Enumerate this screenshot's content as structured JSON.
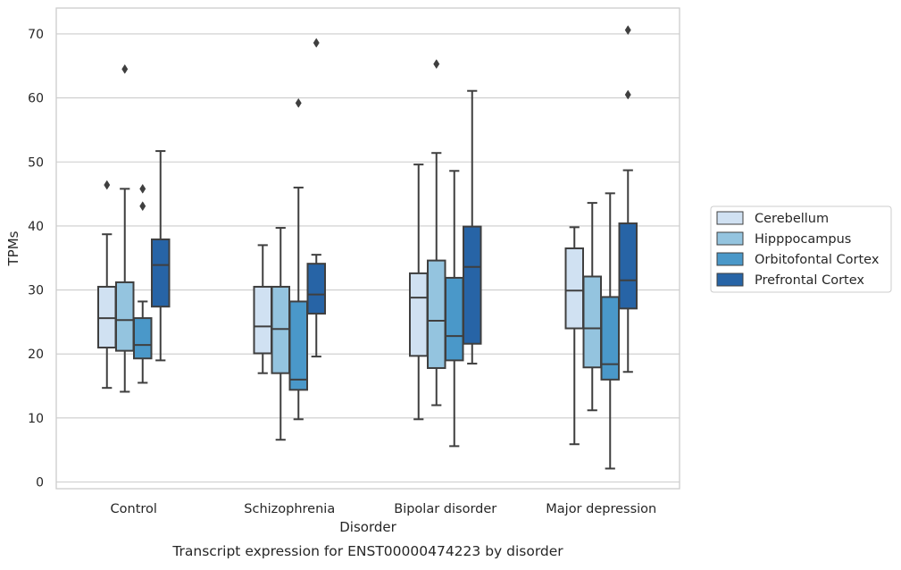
{
  "chart_data": {
    "type": "box",
    "title": "Transcript expression for ENST00000474223 by disorder",
    "xlabel": "Disorder",
    "ylabel": "TPMs",
    "ylim": [
      -1,
      74
    ],
    "yticks": [
      0,
      10,
      20,
      30,
      40,
      50,
      60,
      70
    ],
    "grid": true,
    "legend_position": "right",
    "categories": [
      "Control",
      "Schizophrenia",
      "Bipolar disorder",
      "Major depression"
    ],
    "series": [
      {
        "name": "Cerebellum",
        "color": "#d0e1f2",
        "boxes": [
          {
            "whisker_low": 14.7,
            "q1": 21.0,
            "median": 25.6,
            "q3": 30.5,
            "whisker_high": 38.7,
            "outliers": [
              46.4
            ]
          },
          {
            "whisker_low": 17.0,
            "q1": 20.1,
            "median": 24.3,
            "q3": 30.5,
            "whisker_high": 37.0,
            "outliers": []
          },
          {
            "whisker_low": 9.8,
            "q1": 19.7,
            "median": 28.8,
            "q3": 32.6,
            "whisker_high": 49.6,
            "outliers": []
          },
          {
            "whisker_low": 5.9,
            "q1": 24.0,
            "median": 29.9,
            "q3": 36.5,
            "whisker_high": 39.8,
            "outliers": []
          }
        ]
      },
      {
        "name": "Hipppocampus",
        "color": "#94c4df",
        "boxes": [
          {
            "whisker_low": 14.1,
            "q1": 20.5,
            "median": 25.3,
            "q3": 31.2,
            "whisker_high": 45.8,
            "outliers": [
              64.5
            ]
          },
          {
            "whisker_low": 6.6,
            "q1": 17.0,
            "median": 23.9,
            "q3": 30.5,
            "whisker_high": 39.7,
            "outliers": []
          },
          {
            "whisker_low": 12.0,
            "q1": 17.8,
            "median": 25.2,
            "q3": 34.6,
            "whisker_high": 51.4,
            "outliers": [
              65.3
            ]
          },
          {
            "whisker_low": 11.2,
            "q1": 17.9,
            "median": 24.0,
            "q3": 32.1,
            "whisker_high": 43.6,
            "outliers": []
          }
        ]
      },
      {
        "name": "Orbitofontal Cortex",
        "color": "#4a98c9",
        "boxes": [
          {
            "whisker_low": 15.5,
            "q1": 19.3,
            "median": 21.4,
            "q3": 25.6,
            "whisker_high": 28.2,
            "outliers": [
              43.1,
              45.8
            ]
          },
          {
            "whisker_low": 9.8,
            "q1": 14.4,
            "median": 16.0,
            "q3": 28.2,
            "whisker_high": 46.0,
            "outliers": [
              59.2
            ]
          },
          {
            "whisker_low": 5.6,
            "q1": 19.0,
            "median": 22.8,
            "q3": 31.9,
            "whisker_high": 48.6,
            "outliers": []
          },
          {
            "whisker_low": 2.1,
            "q1": 16.0,
            "median": 18.4,
            "q3": 28.9,
            "whisker_high": 45.1,
            "outliers": []
          }
        ]
      },
      {
        "name": "Prefrontal Cortex",
        "color": "#2764a6",
        "boxes": [
          {
            "whisker_low": 19.0,
            "q1": 27.4,
            "median": 33.9,
            "q3": 37.9,
            "whisker_high": 51.7,
            "outliers": []
          },
          {
            "whisker_low": 19.6,
            "q1": 26.3,
            "median": 29.3,
            "q3": 34.1,
            "whisker_high": 35.5,
            "outliers": [
              68.6
            ]
          },
          {
            "whisker_low": 18.5,
            "q1": 21.6,
            "median": 33.6,
            "q3": 39.9,
            "whisker_high": 61.1,
            "outliers": []
          },
          {
            "whisker_low": 17.2,
            "q1": 27.1,
            "median": 31.5,
            "q3": 40.4,
            "whisker_high": 48.7,
            "outliers": [
              60.5,
              70.6
            ]
          }
        ]
      }
    ]
  }
}
